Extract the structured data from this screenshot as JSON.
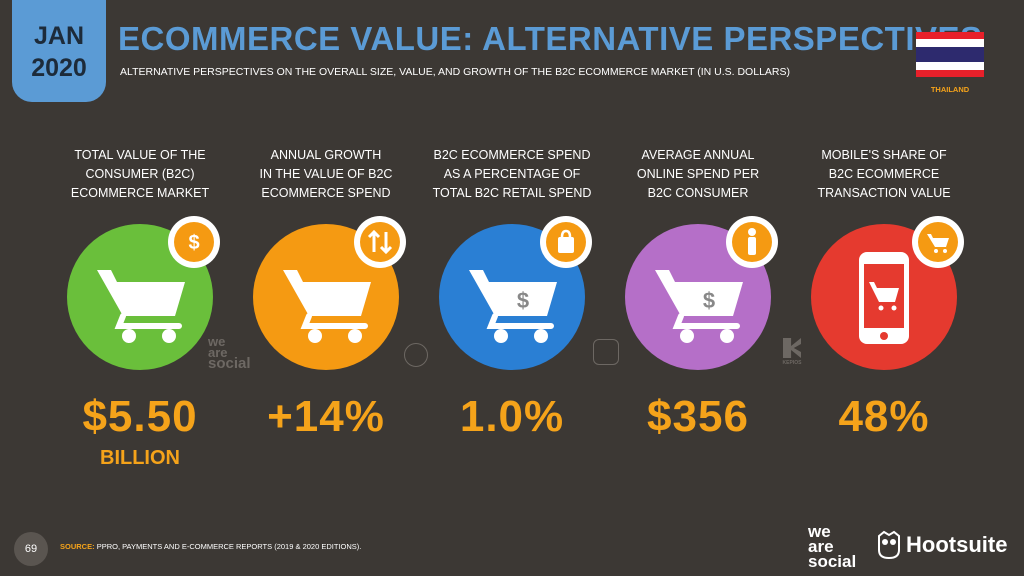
{
  "header": {
    "date_month": "JAN",
    "date_year": "2020",
    "title": "ECOMMERCE VALUE: ALTERNATIVE PERSPECTIVES",
    "subtitle": "ALTERNATIVE PERSPECTIVES ON THE OVERALL SIZE, VALUE, AND GROWTH OF THE B2C ECOMMERCE MARKET (IN U.S. DOLLARS)",
    "country": "THAILAND"
  },
  "colors": {
    "background": "#3c3834",
    "accent_blue": "#5b9bd5",
    "accent_orange": "#f5a31a",
    "green": "#6abf3b",
    "orange": "#f59a12",
    "blue": "#2a7fd4",
    "purple": "#b56fc8",
    "red": "#e53a2f"
  },
  "stats": [
    {
      "label_lines": [
        "TOTAL VALUE OF THE",
        "CONSUMER (B2C)",
        "ECOMMERCE MARKET"
      ],
      "value": "$5.50",
      "value_sub": "BILLION",
      "icon": "cart-icon",
      "badge_icon": "dollar-coin-icon"
    },
    {
      "label_lines": [
        "ANNUAL GROWTH",
        "IN THE VALUE OF B2C",
        "ECOMMERCE SPEND"
      ],
      "value": "+14%",
      "value_sub": "",
      "icon": "cart-icon",
      "badge_icon": "up-down-arrows-icon"
    },
    {
      "label_lines": [
        "B2C ECOMMERCE SPEND",
        "AS A PERCENTAGE OF",
        "TOTAL B2C RETAIL SPEND"
      ],
      "value": "1.0%",
      "value_sub": "",
      "icon": "cart-dollar-icon",
      "badge_icon": "shopping-bag-icon"
    },
    {
      "label_lines": [
        "AVERAGE ANNUAL",
        "ONLINE SPEND PER",
        "B2C CONSUMER"
      ],
      "value": "$356",
      "value_sub": "",
      "icon": "cart-dollar-icon",
      "badge_icon": "person-icon"
    },
    {
      "label_lines": [
        "MOBILE'S SHARE OF",
        "B2C ECOMMERCE",
        "TRANSACTION VALUE"
      ],
      "value": "48%",
      "value_sub": "",
      "icon": "mobile-cart-icon",
      "badge_icon": "cart-icon"
    }
  ],
  "watermarks": {
    "we": "we",
    "are": "are",
    "social": "social",
    "kepios": "KEPIOS"
  },
  "footer": {
    "page_number": "69",
    "source_label": "SOURCE:",
    "source_text": "PPRO, PAYMENTS AND E-COMMERCE REPORTS (2019 & 2020 EDITIONS).",
    "logo_we": "we",
    "logo_are": "are",
    "logo_social": "social",
    "logo_hootsuite": "Hootsuite"
  }
}
